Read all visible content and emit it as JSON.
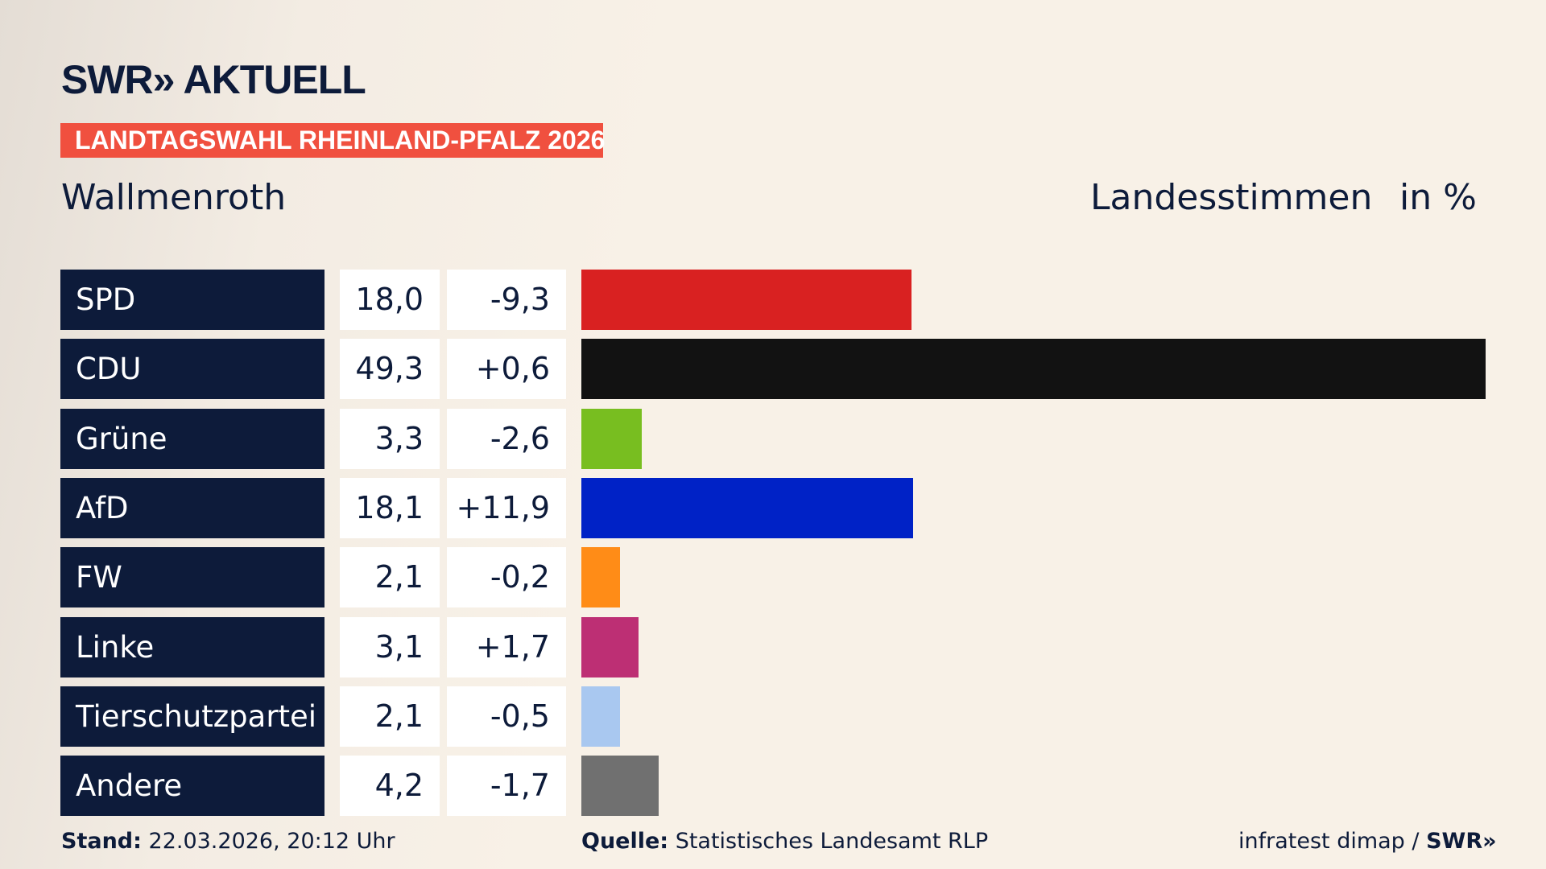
{
  "header": {
    "logo": "SWR» AKTUELL",
    "banner": "LANDTAGSWAHL RHEINLAND-PFALZ 2026",
    "banner_color": "#f0503f",
    "place": "Wallmenroth",
    "measure": "Landesstimmen",
    "unit": "in %"
  },
  "chart_data": {
    "type": "bar",
    "orientation": "horizontal",
    "categories": [
      "SPD",
      "CDU",
      "Grüne",
      "AfD",
      "FW",
      "Linke",
      "Tierschutzpartei",
      "Andere"
    ],
    "values": [
      18.0,
      49.3,
      3.3,
      18.1,
      2.1,
      3.1,
      2.1,
      4.2
    ],
    "value_labels": [
      "18,0",
      "49,3",
      "3,3",
      "18,1",
      "2,1",
      "3,1",
      "2,1",
      "4,2"
    ],
    "diff_labels": [
      "-9,3",
      "+0,6",
      "-2,6",
      "+11,9",
      "-0,2",
      "+1,7",
      "-0,5",
      "-1,7"
    ],
    "colors": [
      "#d92121",
      "#121212",
      "#78be20",
      "#0022c6",
      "#ff8c17",
      "#bd2f74",
      "#a9c8f0",
      "#707070"
    ],
    "xlim": [
      0,
      49.3
    ]
  },
  "footer": {
    "stand_label": "Stand:",
    "stand_value": "22.03.2026, 20:12 Uhr",
    "source_label": "Quelle:",
    "source_value": "Statistisches Landesamt RLP",
    "credit": "infratest dimap / ",
    "credit_logo": "SWR»"
  }
}
